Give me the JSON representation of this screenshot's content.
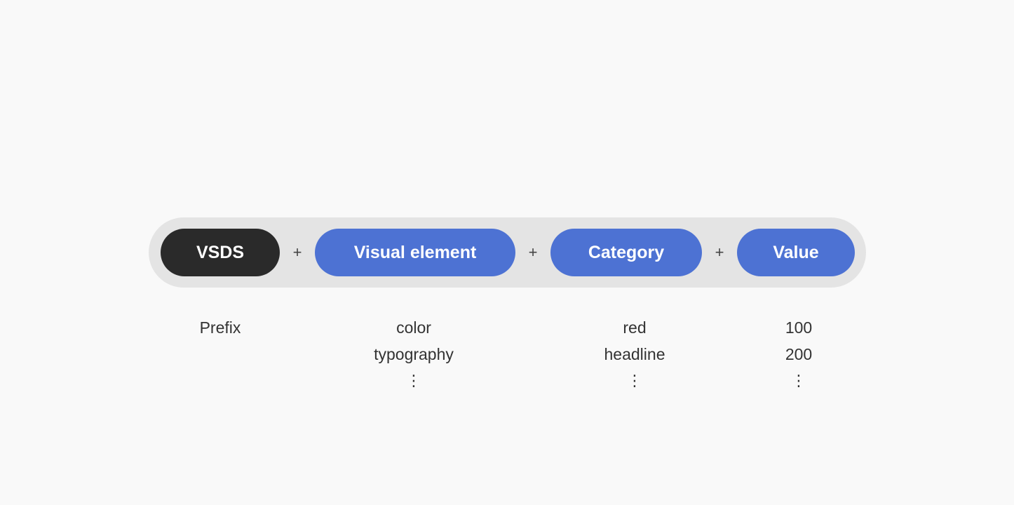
{
  "diagram": {
    "segments": [
      {
        "label": "VSDS",
        "style": "dark"
      },
      {
        "label": "Visual element",
        "style": "blue"
      },
      {
        "label": "Category",
        "style": "blue"
      },
      {
        "label": "Value",
        "style": "blue"
      }
    ],
    "separator": "+",
    "columns": [
      {
        "items": [
          "Prefix"
        ]
      },
      {
        "items": [
          "color",
          "typography"
        ],
        "more": "⋮"
      },
      {
        "items": [
          "red",
          "headline"
        ],
        "more": "⋮"
      },
      {
        "items": [
          "100",
          "200"
        ],
        "more": "⋮"
      }
    ]
  },
  "colors": {
    "background": "#f9f9f9",
    "track": "#e4e4e4",
    "dark_pill": "#2a2a2a",
    "accent": "#4d72d3"
  }
}
